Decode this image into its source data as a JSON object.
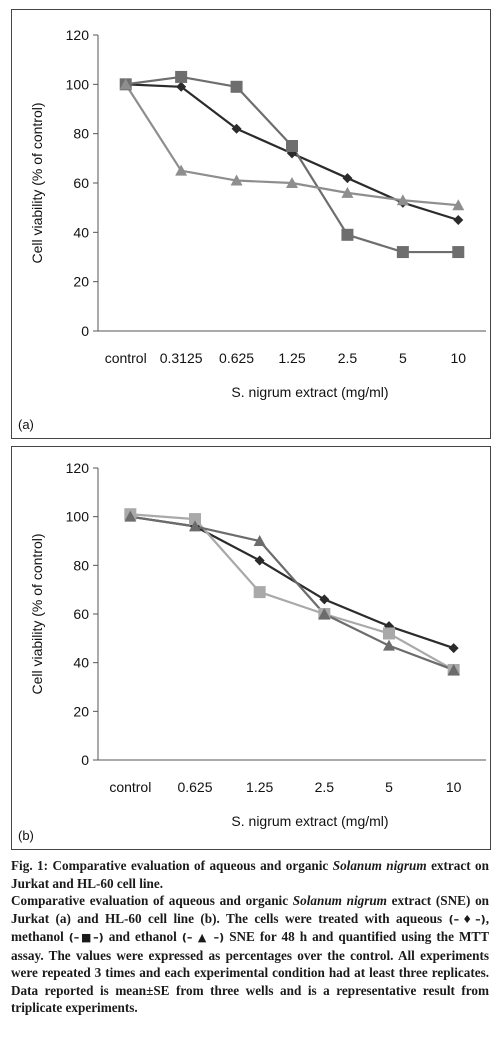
{
  "chart_data": [
    {
      "type": "line",
      "panel_label": "(a)",
      "categories": [
        "control",
        "0.3125",
        "0.625",
        "1.25",
        "2.5",
        "5",
        "10"
      ],
      "xlabel": "S. nigrum extract (mg/ml)",
      "ylabel": "Cell viability (% of control)",
      "ylim": [
        0,
        120
      ],
      "yticks": [
        "0",
        "20",
        "40",
        "60",
        "80",
        "100",
        "120"
      ],
      "grid": false,
      "series": [
        {
          "marker": "diamond",
          "color": "#2b2b2b",
          "values": [
            100,
            99,
            82,
            72,
            62,
            52,
            45
          ]
        },
        {
          "marker": "square",
          "color": "#6e6e6e",
          "values": [
            100,
            103,
            99,
            75,
            39,
            32,
            32
          ]
        },
        {
          "marker": "triangle",
          "color": "#8e8e8e",
          "values": [
            100,
            65,
            61,
            60,
            56,
            53,
            51
          ]
        }
      ]
    },
    {
      "type": "line",
      "panel_label": "(b)",
      "categories": [
        "control",
        "0.625",
        "1.25",
        "2.5",
        "5",
        "10"
      ],
      "xlabel": "S. nigrum extract (mg/ml)",
      "ylabel": "Cell viability (% of control)",
      "ylim": [
        0,
        120
      ],
      "yticks": [
        "0",
        "20",
        "40",
        "60",
        "80",
        "100",
        "120"
      ],
      "grid": false,
      "series": [
        {
          "marker": "diamond",
          "color": "#2b2b2b",
          "values": [
            100,
            96,
            82,
            66,
            55,
            46
          ]
        },
        {
          "marker": "square",
          "color": "#a9a9a9",
          "values": [
            101,
            99,
            69,
            60,
            52,
            37
          ]
        },
        {
          "marker": "triangle",
          "color": "#6c6c6c",
          "values": [
            100,
            96,
            90,
            60,
            47,
            37
          ]
        }
      ]
    }
  ],
  "caption": {
    "figure_label": "Fig. 1:",
    "title_plain": "Comparative evaluation of aqueous and organic",
    "title_italic": "Solanum nigrum",
    "title_end": "extract on Jurkat and HL-60 cell line.",
    "body_start": "Comparative evaluation of aqueous and organic",
    "body_italic": "Solanum nigrum",
    "body_a": "extract (SNE) on Jurkat (a) and HL-60 cell line (b). The cells were treated with aqueous",
    "sym_aqueous": "(–♦–)",
    "body_b": ", methanol",
    "sym_methanol": "(–■–)",
    "body_c": "and ethanol",
    "sym_ethanol": "(– ▲ –)",
    "body_d": "SNE for 48 h and quantified using the MTT assay. The values were expressed as percentages over the control. All experiments were repeated 3 times and each experimental condition had at least three replicates. Data reported is mean±SE from three wells and is a representative result from triplicate experiments."
  }
}
